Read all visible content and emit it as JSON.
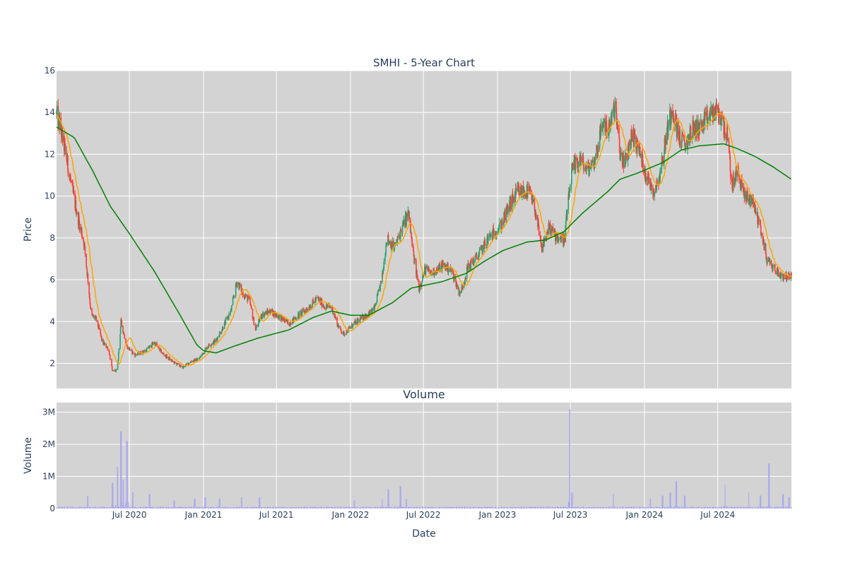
{
  "chart_data": {
    "type": "candlestick",
    "title": "SMHI - 5-Year Chart",
    "price_panel": {
      "ylabel": "Price",
      "ylim": [
        0.8,
        16
      ],
      "yticks": [
        2,
        4,
        6,
        8,
        10,
        12,
        14,
        16
      ],
      "colors": {
        "up": "#26a269",
        "down": "#ff3b30",
        "ma_short": "#ffa500",
        "ma_long": "#008000",
        "bg": "#d3d3d3"
      },
      "close_keyframes": [
        [
          "2020-01-02",
          13.9
        ],
        [
          "2020-01-10",
          13.4
        ],
        [
          "2020-01-25",
          12.0
        ],
        [
          "2020-02-10",
          10.3
        ],
        [
          "2020-02-25",
          8.9
        ],
        [
          "2020-03-10",
          7.8
        ],
        [
          "2020-03-20",
          6.0
        ],
        [
          "2020-03-28",
          4.3
        ],
        [
          "2020-04-10",
          4.1
        ],
        [
          "2020-04-25",
          3.0
        ],
        [
          "2020-05-10",
          2.7
        ],
        [
          "2020-05-20",
          1.6
        ],
        [
          "2020-06-01",
          1.7
        ],
        [
          "2020-06-10",
          4.0
        ],
        [
          "2020-06-25",
          2.8
        ],
        [
          "2020-07-15",
          2.4
        ],
        [
          "2020-08-10",
          2.6
        ],
        [
          "2020-09-01",
          3.0
        ],
        [
          "2020-09-20",
          2.5
        ],
        [
          "2020-10-15",
          2.1
        ],
        [
          "2020-11-10",
          1.8
        ],
        [
          "2020-12-01",
          2.1
        ],
        [
          "2020-12-20",
          2.2
        ],
        [
          "2021-01-10",
          2.8
        ],
        [
          "2021-02-01",
          3.1
        ],
        [
          "2021-02-20",
          3.8
        ],
        [
          "2021-03-10",
          4.5
        ],
        [
          "2021-03-25",
          5.9
        ],
        [
          "2021-04-10",
          5.3
        ],
        [
          "2021-04-25",
          5.0
        ],
        [
          "2021-05-10",
          3.6
        ],
        [
          "2021-05-25",
          4.3
        ],
        [
          "2021-06-15",
          4.5
        ],
        [
          "2021-07-10",
          4.2
        ],
        [
          "2021-08-01",
          3.9
        ],
        [
          "2021-08-25",
          4.3
        ],
        [
          "2021-09-20",
          4.7
        ],
        [
          "2021-10-10",
          5.1
        ],
        [
          "2021-10-30",
          4.7
        ],
        [
          "2021-11-15",
          4.7
        ],
        [
          "2021-12-01",
          3.8
        ],
        [
          "2021-12-15",
          3.4
        ],
        [
          "2022-01-10",
          3.9
        ],
        [
          "2022-02-10",
          4.3
        ],
        [
          "2022-03-01",
          4.6
        ],
        [
          "2022-03-20",
          6.0
        ],
        [
          "2022-04-01",
          8.0
        ],
        [
          "2022-04-20",
          7.5
        ],
        [
          "2022-05-10",
          8.5
        ],
        [
          "2022-05-25",
          9.2
        ],
        [
          "2022-06-05",
          7.3
        ],
        [
          "2022-06-20",
          5.6
        ],
        [
          "2022-07-05",
          6.5
        ],
        [
          "2022-07-20",
          6.3
        ],
        [
          "2022-08-20",
          6.7
        ],
        [
          "2022-09-10",
          6.4
        ],
        [
          "2022-09-30",
          5.3
        ],
        [
          "2022-10-20",
          6.6
        ],
        [
          "2022-11-15",
          7.2
        ],
        [
          "2022-12-10",
          8.0
        ],
        [
          "2023-01-10",
          8.6
        ],
        [
          "2023-02-01",
          9.6
        ],
        [
          "2023-02-20",
          10.2
        ],
        [
          "2023-03-20",
          10.2
        ],
        [
          "2023-04-05",
          9.3
        ],
        [
          "2023-04-20",
          7.5
        ],
        [
          "2023-05-10",
          8.5
        ],
        [
          "2023-05-25",
          8.1
        ],
        [
          "2023-06-15",
          7.9
        ],
        [
          "2023-07-05",
          11.2
        ],
        [
          "2023-07-25",
          11.8
        ],
        [
          "2023-08-10",
          11.2
        ],
        [
          "2023-08-30",
          11.7
        ],
        [
          "2023-09-20",
          13.5
        ],
        [
          "2023-10-05",
          13.2
        ],
        [
          "2023-10-20",
          14.3
        ],
        [
          "2023-11-01",
          12.0
        ],
        [
          "2023-11-15",
          11.6
        ],
        [
          "2023-12-01",
          13.0
        ],
        [
          "2023-12-20",
          12.1
        ],
        [
          "2024-01-05",
          11.0
        ],
        [
          "2024-01-25",
          10.2
        ],
        [
          "2024-02-10",
          11.2
        ],
        [
          "2024-02-25",
          13.0
        ],
        [
          "2024-03-10",
          14.3
        ],
        [
          "2024-03-25",
          12.9
        ],
        [
          "2024-04-10",
          12.4
        ],
        [
          "2024-04-30",
          13.2
        ],
        [
          "2024-05-20",
          13.3
        ],
        [
          "2024-06-10",
          13.8
        ],
        [
          "2024-06-25",
          14.1
        ],
        [
          "2024-07-10",
          13.7
        ],
        [
          "2024-07-25",
          12.8
        ],
        [
          "2024-08-05",
          10.5
        ],
        [
          "2024-08-20",
          11.2
        ],
        [
          "2024-09-05",
          10.0
        ],
        [
          "2024-09-25",
          9.8
        ],
        [
          "2024-10-15",
          8.5
        ],
        [
          "2024-10-30",
          7.0
        ],
        [
          "2024-11-15",
          6.6
        ],
        [
          "2024-12-05",
          6.2
        ],
        [
          "2024-12-31",
          6.1
        ]
      ],
      "ma_long_keyframes": [
        [
          "2020-01-02",
          13.3
        ],
        [
          "2020-02-15",
          12.8
        ],
        [
          "2020-04-01",
          11.2
        ],
        [
          "2020-05-15",
          9.5
        ],
        [
          "2020-07-01",
          8.2
        ],
        [
          "2020-09-01",
          6.4
        ],
        [
          "2020-11-01",
          4.4
        ],
        [
          "2020-12-15",
          2.9
        ],
        [
          "2021-01-01",
          2.6
        ],
        [
          "2021-02-01",
          2.5
        ],
        [
          "2021-03-15",
          2.8
        ],
        [
          "2021-05-15",
          3.2
        ],
        [
          "2021-08-01",
          3.6
        ],
        [
          "2021-10-01",
          4.2
        ],
        [
          "2021-11-15",
          4.5
        ],
        [
          "2022-01-01",
          4.3
        ],
        [
          "2022-02-15",
          4.3
        ],
        [
          "2022-04-15",
          4.9
        ],
        [
          "2022-06-01",
          5.6
        ],
        [
          "2022-08-15",
          5.9
        ],
        [
          "2022-10-15",
          6.3
        ],
        [
          "2022-12-01",
          6.9
        ],
        [
          "2023-01-15",
          7.4
        ],
        [
          "2023-03-15",
          7.8
        ],
        [
          "2023-05-01",
          7.9
        ],
        [
          "2023-06-15",
          8.3
        ],
        [
          "2023-08-01",
          9.2
        ],
        [
          "2023-10-01",
          10.2
        ],
        [
          "2023-11-01",
          10.8
        ],
        [
          "2023-12-15",
          11.1
        ],
        [
          "2024-02-15",
          11.6
        ],
        [
          "2024-04-01",
          12.2
        ],
        [
          "2024-05-15",
          12.4
        ],
        [
          "2024-07-15",
          12.5
        ],
        [
          "2024-08-15",
          12.3
        ],
        [
          "2024-10-01",
          11.9
        ],
        [
          "2024-11-15",
          11.4
        ],
        [
          "2024-12-31",
          10.8
        ]
      ]
    },
    "volume_panel": {
      "title": "Volume",
      "ylabel": "Volume",
      "xlabel": "Date",
      "ylim": [
        0,
        3300000
      ],
      "yticks": [
        0,
        1000000,
        2000000,
        3000000
      ],
      "ytick_labels": [
        "0",
        "1M",
        "2M",
        "3M"
      ],
      "bar_color": "#aaaaee",
      "spikes": [
        [
          "2020-03-20",
          400000
        ],
        [
          "2020-05-20",
          800000
        ],
        [
          "2020-06-01",
          1300000
        ],
        [
          "2020-06-10",
          2400000
        ],
        [
          "2020-06-15",
          900000
        ],
        [
          "2020-06-25",
          2100000
        ],
        [
          "2020-07-10",
          500000
        ],
        [
          "2020-08-20",
          450000
        ],
        [
          "2020-10-20",
          250000
        ],
        [
          "2020-12-10",
          300000
        ],
        [
          "2021-01-05",
          350000
        ],
        [
          "2021-02-10",
          300000
        ],
        [
          "2021-04-05",
          350000
        ],
        [
          "2021-05-20",
          350000
        ],
        [
          "2022-01-10",
          250000
        ],
        [
          "2022-03-20",
          300000
        ],
        [
          "2022-04-05",
          600000
        ],
        [
          "2022-05-05",
          700000
        ],
        [
          "2022-05-20",
          300000
        ],
        [
          "2023-06-30",
          3100000
        ],
        [
          "2023-07-05",
          500000
        ],
        [
          "2023-10-15",
          450000
        ],
        [
          "2024-01-15",
          300000
        ],
        [
          "2024-02-15",
          400000
        ],
        [
          "2024-03-05",
          500000
        ],
        [
          "2024-03-20",
          850000
        ],
        [
          "2024-04-10",
          400000
        ],
        [
          "2024-07-20",
          750000
        ],
        [
          "2024-09-15",
          500000
        ],
        [
          "2024-10-15",
          400000
        ],
        [
          "2024-11-05",
          1400000
        ],
        [
          "2024-12-10",
          450000
        ],
        [
          "2024-12-25",
          350000
        ]
      ]
    },
    "x_axis": {
      "range": [
        "2020-01-02",
        "2024-12-31"
      ],
      "ticks": [
        [
          "2020-07-01",
          "Jul 2020"
        ],
        [
          "2021-01-01",
          "Jan 2021"
        ],
        [
          "2021-07-01",
          "Jul 2021"
        ],
        [
          "2022-01-01",
          "Jan 2022"
        ],
        [
          "2022-07-01",
          "Jul 2022"
        ],
        [
          "2023-01-01",
          "Jan 2023"
        ],
        [
          "2023-07-01",
          "Jul 2023"
        ],
        [
          "2024-01-01",
          "Jan 2024"
        ],
        [
          "2024-07-01",
          "Jul 2024"
        ]
      ]
    },
    "grid": true,
    "legend": "none"
  }
}
